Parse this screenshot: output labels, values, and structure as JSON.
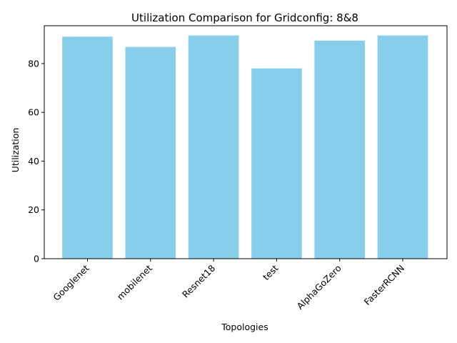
{
  "chart_data": {
    "type": "bar",
    "title": "Utilization Comparison for Gridconfig: 8&8",
    "xlabel": "Topologies",
    "ylabel": "Utilization",
    "categories": [
      "Googlenet",
      "mobilenet",
      "Resnet18",
      "test",
      "AlphaGoZero",
      "FasterRCNN"
    ],
    "values": [
      91.0,
      86.8,
      91.5,
      78.0,
      89.4,
      91.5
    ],
    "ylim": [
      0,
      95.5
    ],
    "yticks": [
      0,
      20,
      40,
      60,
      80
    ],
    "bar_color": "#87CEEB",
    "grid": false,
    "legend": "none"
  }
}
